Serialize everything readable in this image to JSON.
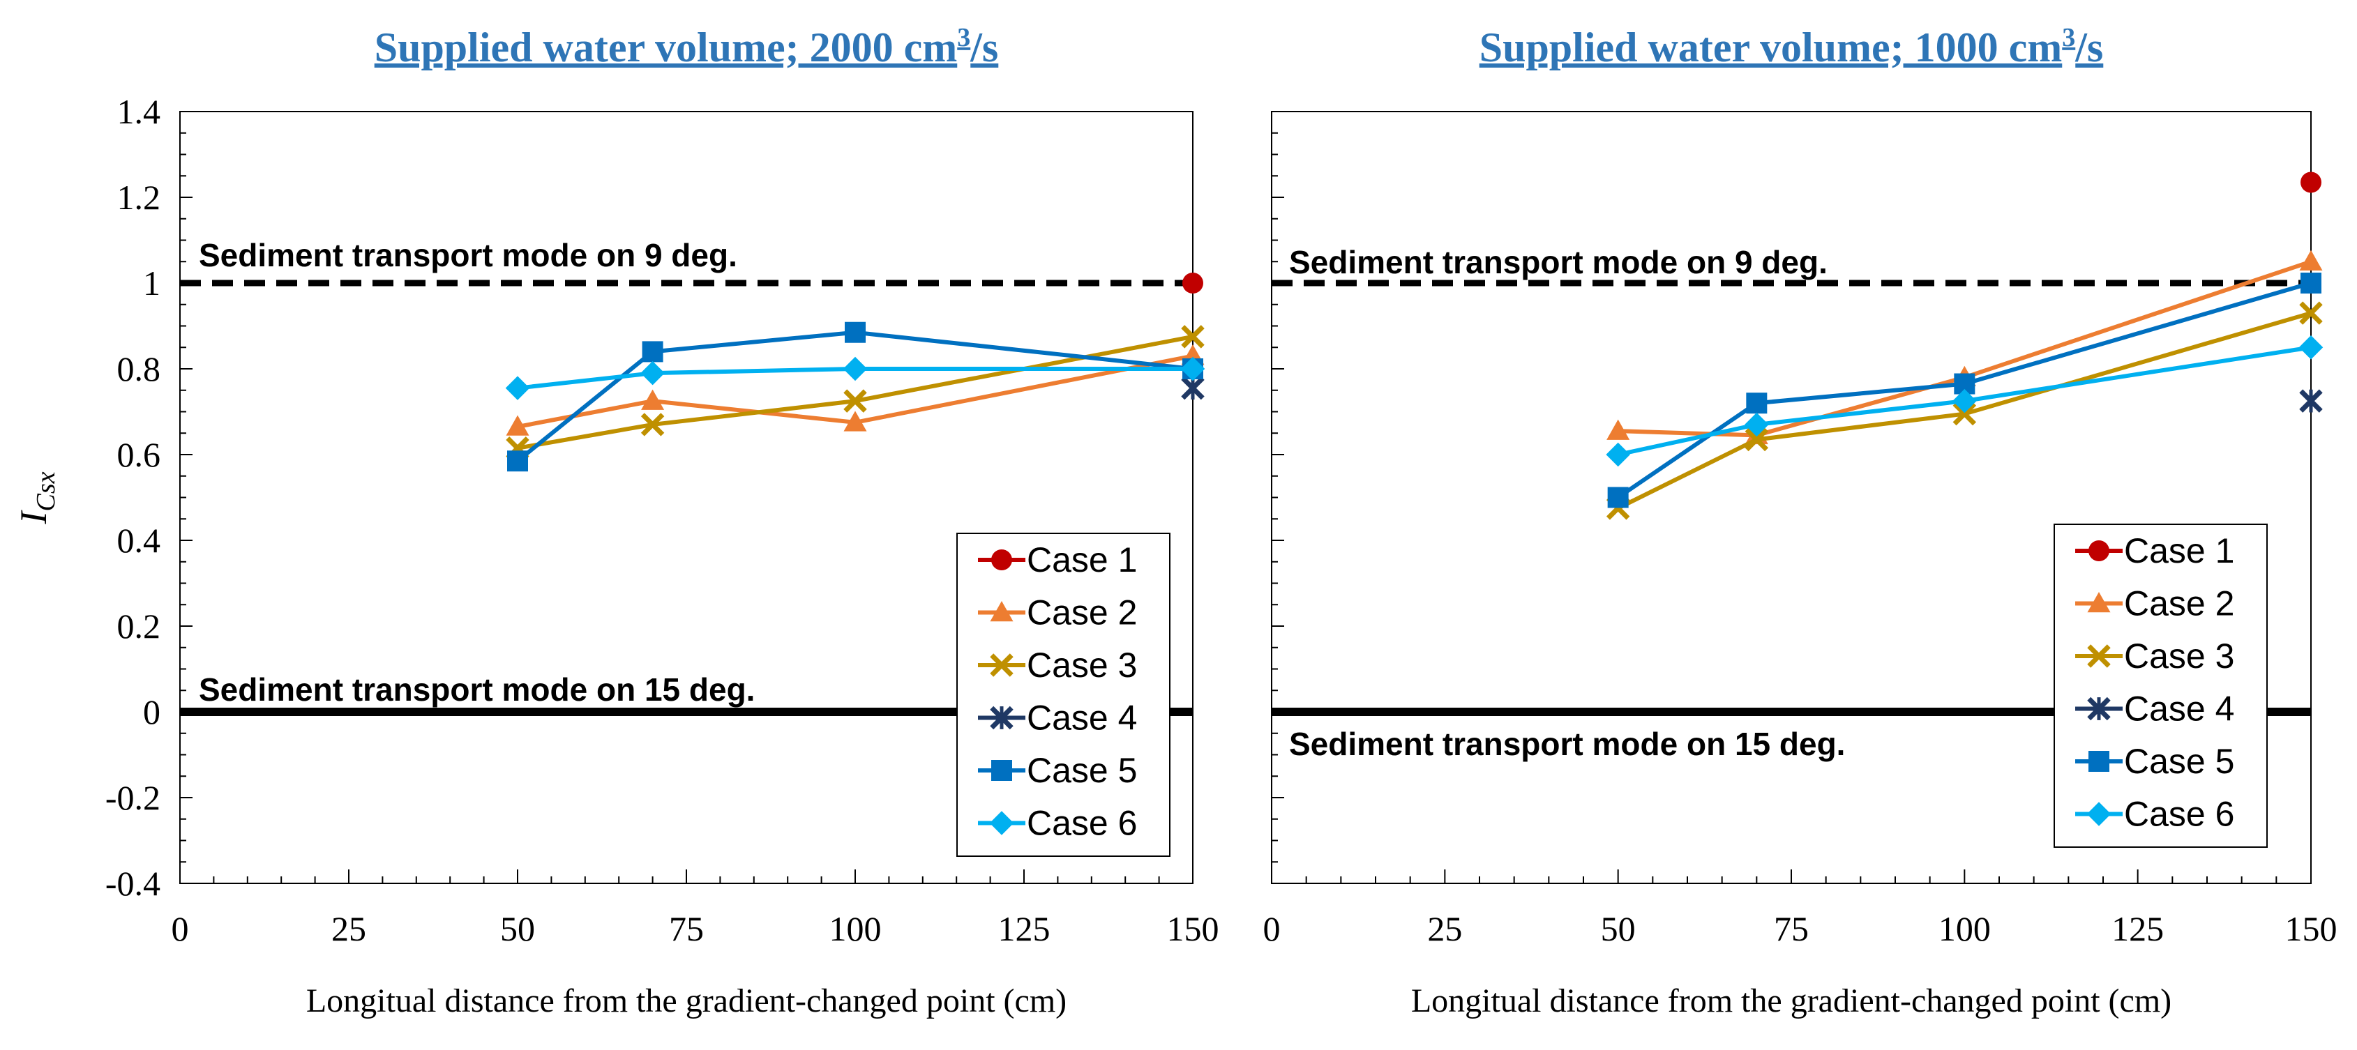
{
  "ylabel_symbol": "I",
  "ylabel_subscript": "Csx",
  "chart_data": [
    {
      "type": "line",
      "title_main": "Supplied water volume; 2000 cm",
      "title_sup": "3",
      "title_end": "/s",
      "xlabel": "Longitual distance from the gradient-changed point (cm)",
      "xlim": [
        0,
        150
      ],
      "ylim": [
        -0.4,
        1.4
      ],
      "x_ticks": [
        0,
        25,
        50,
        75,
        100,
        125,
        150
      ],
      "y_ticks": [
        "-0.4",
        "-0.2",
        "0",
        "0.2",
        "0.4",
        "0.6",
        "0.8",
        "1",
        "1.2",
        "1.4"
      ],
      "reference_lines": [
        {
          "label": "Sediment transport mode on 9 deg.",
          "y": 1,
          "style": "dashed"
        },
        {
          "label": "Sediment transport mode on 15 deg.",
          "y": 0,
          "style": "solid"
        }
      ],
      "series": [
        {
          "name": "Case 1",
          "marker": "circle",
          "color": "#C00000",
          "x": [
            150
          ],
          "y": [
            1.0
          ]
        },
        {
          "name": "Case 2",
          "marker": "triangle",
          "color": "#ED7D31",
          "x": [
            50,
            70,
            100,
            150
          ],
          "y": [
            0.665,
            0.725,
            0.675,
            0.83
          ]
        },
        {
          "name": "Case 3",
          "marker": "x",
          "color": "#BF9000",
          "x": [
            50,
            70,
            100,
            150
          ],
          "y": [
            0.615,
            0.67,
            0.725,
            0.875
          ]
        },
        {
          "name": "Case 4",
          "marker": "star",
          "color": "#1F3864",
          "x": [
            150
          ],
          "y": [
            0.755
          ]
        },
        {
          "name": "Case 5",
          "marker": "square",
          "color": "#0070C0",
          "x": [
            50,
            70,
            100,
            150
          ],
          "y": [
            0.585,
            0.84,
            0.885,
            0.8
          ]
        },
        {
          "name": "Case 6",
          "marker": "diamond",
          "color": "#00B0F0",
          "x": [
            50,
            70,
            100,
            150
          ],
          "y": [
            0.755,
            0.79,
            0.8,
            0.8
          ]
        }
      ]
    },
    {
      "type": "line",
      "title_main": "Supplied water volume; 1000 cm",
      "title_sup": "3",
      "title_end": "/s",
      "xlabel": "Longitual distance from the gradient-changed point (cm)",
      "xlim": [
        0,
        150
      ],
      "ylim": [
        -0.4,
        1.4
      ],
      "x_ticks": [
        0,
        25,
        50,
        75,
        100,
        125,
        150
      ],
      "reference_lines": [
        {
          "label": "Sediment transport mode on 9 deg.",
          "y": 1,
          "style": "dashed"
        },
        {
          "label": "Sediment transport mode on 15 deg.",
          "y": 0,
          "style": "solid"
        }
      ],
      "series": [
        {
          "name": "Case 1",
          "marker": "circle",
          "color": "#C00000",
          "x": [
            150
          ],
          "y": [
            1.235
          ]
        },
        {
          "name": "Case 2",
          "marker": "triangle",
          "color": "#ED7D31",
          "x": [
            50,
            70,
            100,
            150
          ],
          "y": [
            0.655,
            0.645,
            0.78,
            1.05
          ]
        },
        {
          "name": "Case 3",
          "marker": "x",
          "color": "#BF9000",
          "x": [
            50,
            70,
            100,
            150
          ],
          "y": [
            0.475,
            0.635,
            0.695,
            0.93
          ]
        },
        {
          "name": "Case 4",
          "marker": "star",
          "color": "#1F3864",
          "x": [
            150
          ],
          "y": [
            0.725
          ]
        },
        {
          "name": "Case 5",
          "marker": "square",
          "color": "#0070C0",
          "x": [
            50,
            70,
            100,
            150
          ],
          "y": [
            0.5,
            0.72,
            0.765,
            1.0
          ]
        },
        {
          "name": "Case 6",
          "marker": "diamond",
          "color": "#00B0F0",
          "x": [
            50,
            70,
            100,
            150
          ],
          "y": [
            0.6,
            0.67,
            0.725,
            0.85
          ]
        }
      ]
    }
  ]
}
